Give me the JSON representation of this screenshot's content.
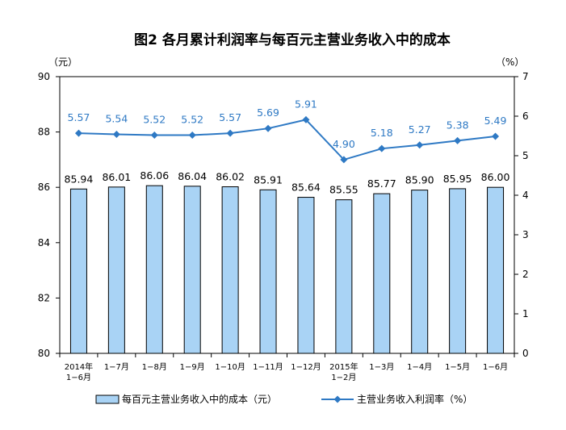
{
  "chart_data": {
    "type": "bar",
    "title": "图2  各月累计利润率与每百元主营业务收入中的成本",
    "left_unit": "（元）",
    "right_unit": "（%）",
    "categories": [
      [
        "2014年",
        "1−6月"
      ],
      [
        "1−7月"
      ],
      [
        "1−8月"
      ],
      [
        "1−9月"
      ],
      [
        "1−10月"
      ],
      [
        "1−11月"
      ],
      [
        "1−12月"
      ],
      [
        "2015年",
        "1−2月"
      ],
      [
        "1−3月"
      ],
      [
        "1−4月"
      ],
      [
        "1−5月"
      ],
      [
        "1−6月"
      ]
    ],
    "series": [
      {
        "name": "每百元主营业务收入中的成本（元）",
        "type": "bar",
        "axis": "left",
        "color": "#a9d3f5",
        "values": [
          85.94,
          86.01,
          86.06,
          86.04,
          86.02,
          85.91,
          85.64,
          85.55,
          85.77,
          85.9,
          85.95,
          86.0
        ],
        "labels": [
          "85.94",
          "86.01",
          "86.06",
          "86.04",
          "86.02",
          "85.91",
          "85.64",
          "85.55",
          "85.77",
          "85.90",
          "85.95",
          "86.00"
        ]
      },
      {
        "name": "主营业务收入利润率（%）",
        "type": "line",
        "axis": "right",
        "color": "#2e79c4",
        "values": [
          5.57,
          5.54,
          5.52,
          5.52,
          5.57,
          5.69,
          5.91,
          4.9,
          5.18,
          5.27,
          5.38,
          5.49
        ],
        "labels": [
          "5.57",
          "5.54",
          "5.52",
          "5.52",
          "5.57",
          "5.69",
          "5.91",
          "4.90",
          "5.18",
          "5.27",
          "5.38",
          "5.49"
        ]
      }
    ],
    "left_axis": {
      "min": 80,
      "max": 90,
      "ticks": [
        "80",
        "82",
        "84",
        "86",
        "88",
        "90"
      ]
    },
    "right_axis": {
      "min": 0,
      "max": 7,
      "ticks": [
        "0",
        "1",
        "2",
        "3",
        "4",
        "5",
        "6",
        "7"
      ]
    },
    "grid": false,
    "legend_position": "bottom"
  }
}
